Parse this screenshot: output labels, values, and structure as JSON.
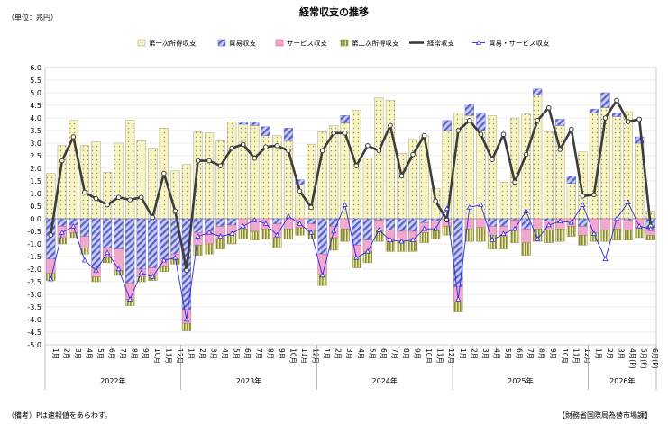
{
  "title": "経常収支の推移",
  "unit_label": "（単位：兆円）",
  "note": "（備考）Pは速報値をあらわす。",
  "source": "【財務省国際局為替市場課】",
  "colors": {
    "primary": "#f7f4c4",
    "primary_dots": "#9a9060",
    "trade": "#9fa6ee",
    "trade_stripe": "#5a62c8",
    "services": "#f1a8cf",
    "services_edge": "#c0508a",
    "secondary": "#8a8a32",
    "secondary_bg": "#e6e6b0",
    "current": "#3c3c3c",
    "goods_services": "#2a2adc",
    "grid": "#d9d9d9"
  },
  "chart_data": {
    "type": "bar",
    "ylim": [
      -5.0,
      6.0
    ],
    "ytick_step": 0.5,
    "legend_position": "top",
    "categories": [
      "1月",
      "2月",
      "3月",
      "4月",
      "5月",
      "6月",
      "7月",
      "8月",
      "9月",
      "10月",
      "11月",
      "12月",
      "1月",
      "2月",
      "3月",
      "4月",
      "5月",
      "6月",
      "7月",
      "8月",
      "9月",
      "10月",
      "11月",
      "12月",
      "1月",
      "2月",
      "3月",
      "4月",
      "5月",
      "6月",
      "7月",
      "8月",
      "9月",
      "10月",
      "11月",
      "12月",
      "1月",
      "2月",
      "3月",
      "4月",
      "5月",
      "6月",
      "7月",
      "8月",
      "9月",
      "10月",
      "11月",
      "12月",
      "1月",
      "2月",
      "3月",
      "4月(P)",
      "5月(P)",
      "6月(P)"
    ],
    "year_groups": [
      {
        "label": "2022年",
        "count": 12
      },
      {
        "label": "2023年",
        "count": 12
      },
      {
        "label": "2024年",
        "count": 12
      },
      {
        "label": "2025年",
        "count": 12
      },
      {
        "label": "2026年",
        "count": 6
      }
    ],
    "series": [
      {
        "name": "第一次所得収支",
        "type": "stacked_bar",
        "values": [
          1.8,
          2.9,
          3.9,
          2.9,
          3.05,
          1.85,
          3.0,
          3.9,
          3.1,
          2.8,
          3.6,
          1.9,
          2.15,
          3.45,
          3.4,
          3.1,
          3.85,
          3.75,
          3.7,
          3.3,
          3.3,
          3.1,
          1.35,
          2.95,
          3.45,
          3.7,
          3.8,
          4.3,
          2.4,
          4.8,
          4.7,
          2.6,
          3.15,
          3.3,
          1.2,
          3.5,
          4.2,
          4.1,
          3.5,
          4.1,
          1.45,
          4.0,
          4.15,
          4.9,
          3.45,
          3.7,
          1.4,
          2.65,
          4.2,
          4.4,
          4.05,
          4.25,
          3.0,
          0.3
        ]
      },
      {
        "name": "貿易収支",
        "type": "stacked_bar",
        "values": [
          -1.6,
          -0.3,
          -0.25,
          -0.7,
          -1.95,
          -1.15,
          -1.2,
          -2.55,
          -2.0,
          -1.95,
          -1.6,
          -1.4,
          -3.6,
          -0.55,
          -0.5,
          -0.3,
          -0.25,
          0.1,
          0.15,
          0.35,
          -0.2,
          0.5,
          0.2,
          -0.2,
          -1.4,
          -0.3,
          0.3,
          -1.05,
          -0.85,
          -0.05,
          -0.45,
          -0.5,
          -0.5,
          -0.15,
          -0.1,
          0.4,
          -2.7,
          0.45,
          0.7,
          -0.3,
          -0.3,
          -0.05,
          -0.4,
          0.25,
          -0.1,
          0.25,
          0.3,
          -0.3,
          0.15,
          0.6,
          0.15,
          -0.05,
          0.25,
          -0.4
        ]
      },
      {
        "name": "サービス収支",
        "type": "stacked_bar",
        "values": [
          -0.55,
          -0.45,
          -0.3,
          -0.45,
          -0.35,
          -0.4,
          -0.85,
          -0.65,
          -0.3,
          -0.3,
          -0.3,
          -0.2,
          -0.55,
          -0.5,
          -0.5,
          -0.5,
          -0.35,
          -0.4,
          -0.5,
          -0.4,
          -0.55,
          -0.4,
          -0.35,
          -0.3,
          -0.8,
          -0.45,
          -0.4,
          -0.45,
          -0.45,
          -0.4,
          -0.45,
          -0.4,
          -0.4,
          -0.4,
          -0.35,
          -0.3,
          -0.6,
          -0.4,
          -0.35,
          -0.35,
          -0.4,
          -0.4,
          -0.55,
          -0.4,
          -0.35,
          -0.4,
          -0.3,
          -0.35,
          -0.55,
          -0.45,
          -0.4,
          -0.4,
          -0.35,
          -0.25
        ]
      },
      {
        "name": "第二次所得収支",
        "type": "stacked_bar",
        "values": [
          -0.3,
          -0.25,
          -0.2,
          -0.25,
          -0.2,
          -0.2,
          -0.2,
          -0.25,
          -0.2,
          -0.2,
          -0.2,
          -0.2,
          -0.3,
          -0.4,
          -0.4,
          -0.4,
          -0.4,
          -0.4,
          -0.35,
          -0.4,
          -0.4,
          -0.4,
          -0.3,
          -0.3,
          -0.45,
          -0.5,
          -0.5,
          -0.45,
          -0.45,
          -0.45,
          -0.4,
          -0.4,
          -0.4,
          -0.4,
          -0.35,
          -0.35,
          -0.4,
          -0.5,
          -0.55,
          -0.55,
          -0.5,
          -0.5,
          -0.5,
          -0.5,
          -0.5,
          -0.5,
          -0.4,
          -0.4,
          -0.35,
          -0.45,
          -0.45,
          -0.4,
          -0.4,
          -0.2
        ]
      },
      {
        "name": "経常収支",
        "type": "line",
        "values": [
          -0.65,
          2.3,
          3.25,
          1.05,
          0.8,
          0.55,
          0.85,
          0.75,
          0.85,
          0.05,
          1.8,
          0.3,
          -2.05,
          2.3,
          2.3,
          2.1,
          2.8,
          2.95,
          2.4,
          2.85,
          2.9,
          2.7,
          1.1,
          0.45,
          2.7,
          3.4,
          3.4,
          2.1,
          2.9,
          2.7,
          3.7,
          1.7,
          2.55,
          3.3,
          0.7,
          -0.05,
          3.5,
          3.9,
          3.35,
          2.35,
          3.35,
          1.45,
          2.55,
          3.9,
          4.4,
          2.75,
          3.55,
          0.9,
          0.95,
          4.0,
          4.7,
          3.85,
          3.95,
          -0.3
        ]
      },
      {
        "name": "貿易・サービス収支",
        "type": "line",
        "values": [
          -2.4,
          -0.55,
          -0.3,
          -1.65,
          -2.05,
          -1.35,
          -2.0,
          -3.2,
          -2.15,
          -2.3,
          -1.65,
          -1.55,
          -4.0,
          -0.7,
          -0.55,
          -0.7,
          -0.6,
          -0.3,
          -0.05,
          -0.2,
          -0.65,
          0.1,
          -0.2,
          -0.55,
          -2.25,
          -0.5,
          0.55,
          -1.55,
          -1.3,
          -0.45,
          -0.85,
          -0.9,
          -0.85,
          -0.4,
          -0.4,
          0.4,
          -3.2,
          0.45,
          0.55,
          -0.85,
          -0.6,
          -0.4,
          0.3,
          -0.8,
          -0.25,
          -0.1,
          -0.15,
          0.55,
          -0.6,
          -1.6,
          0.0,
          0.65,
          -0.3,
          -0.4
        ]
      }
    ]
  }
}
